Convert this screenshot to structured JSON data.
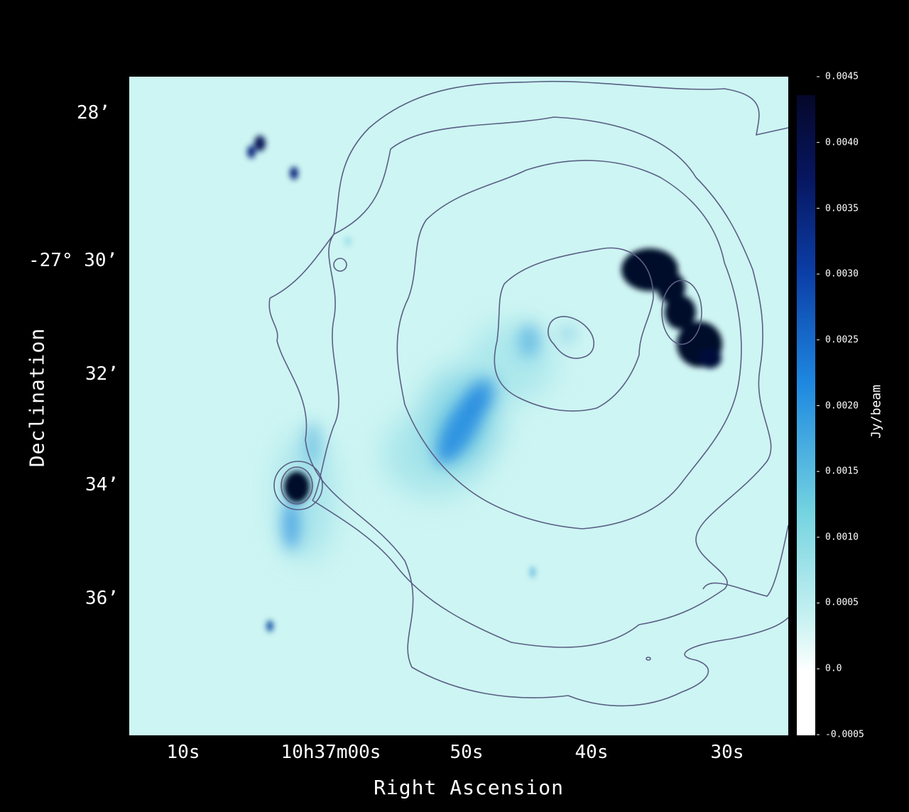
{
  "axes": {
    "x_title": "Right Ascension",
    "y_title": "Declination",
    "x_ticks": [
      "10s",
      "10h37m00s",
      "50s",
      "40s",
      "30s"
    ],
    "y_ticks": [
      "28’",
      "-27° 30’",
      "32’",
      "34’",
      "36’"
    ]
  },
  "colorbar": {
    "unit": "Jy/beam",
    "ticks": [
      "0.0045",
      "0.0040",
      "0.0035",
      "0.0030",
      "0.0025",
      "0.0020",
      "0.0015",
      "0.0010",
      "0.0005",
      "0.0",
      "-0.0005"
    ],
    "colors": {
      "low": "#ffffff",
      "mid": "#7fd9e0",
      "high": "#1565d0",
      "max": "#05082a"
    }
  },
  "colors": {
    "background": "#000000",
    "map_base": "#cdf5f3",
    "contour": "#5a5f85"
  }
}
